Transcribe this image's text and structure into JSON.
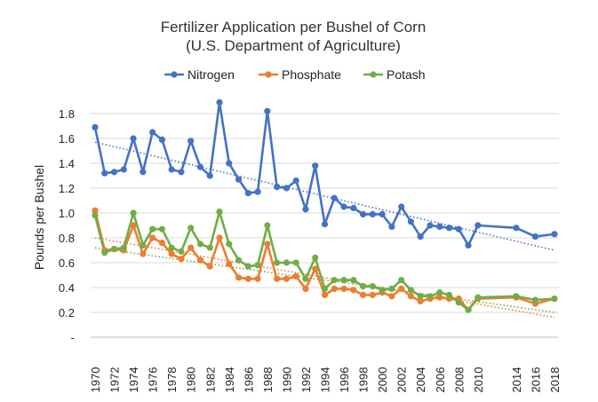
{
  "chart_data": {
    "type": "line",
    "title": [
      "Fertilizer Application per Bushel of Corn",
      "(U.S. Department of Agriculture)"
    ],
    "xlabel": "",
    "ylabel": "Pounds per Bushel",
    "ylim": [
      0,
      1.8
    ],
    "y_ticks": [
      0,
      0.2,
      0.4,
      0.6,
      0.8,
      1.0,
      1.2,
      1.4,
      1.6,
      1.8
    ],
    "y_tick_labels": [
      "-",
      "0.2",
      "0.4",
      "0.6",
      "0.8",
      "1.0",
      "1.2",
      "1.4",
      "1.6",
      "1.8"
    ],
    "xlim": [
      1970,
      2018
    ],
    "x_ticks": [
      1970,
      1972,
      1974,
      1976,
      1978,
      1980,
      1982,
      1984,
      1986,
      1988,
      1990,
      1992,
      1994,
      1996,
      1998,
      2000,
      2002,
      2004,
      2006,
      2008,
      2010,
      2014,
      2016,
      2018
    ],
    "x_tick_labels": [
      "1970",
      "1972",
      "1974",
      "1976",
      "1978",
      "1980",
      "1982",
      "1984",
      "1986",
      "1988",
      "1990",
      "1992",
      "1994",
      "1996",
      "1998",
      "2000",
      "2002",
      "2004",
      "2006",
      "2008",
      "2010",
      "2014",
      "2016",
      "2018"
    ],
    "grid": true,
    "legend_position": "top",
    "trendlines": true,
    "series": [
      {
        "name": "Nitrogen",
        "color": "#4472C4",
        "x": [
          1970,
          1971,
          1972,
          1973,
          1974,
          1975,
          1976,
          1977,
          1978,
          1979,
          1980,
          1981,
          1982,
          1983,
          1984,
          1985,
          1986,
          1987,
          1988,
          1989,
          1990,
          1991,
          1992,
          1993,
          1994,
          1995,
          1996,
          1997,
          1998,
          1999,
          2000,
          2001,
          2002,
          2003,
          2004,
          2005,
          2006,
          2007,
          2008,
          2009,
          2010,
          2014,
          2016,
          2018
        ],
        "values": [
          1.69,
          1.32,
          1.33,
          1.35,
          1.6,
          1.33,
          1.65,
          1.59,
          1.35,
          1.33,
          1.58,
          1.37,
          1.3,
          1.89,
          1.4,
          1.27,
          1.16,
          1.17,
          1.82,
          1.21,
          1.2,
          1.26,
          1.03,
          1.38,
          0.91,
          1.12,
          1.05,
          1.04,
          0.99,
          0.99,
          0.99,
          0.89,
          1.05,
          0.93,
          0.81,
          0.9,
          0.89,
          0.88,
          0.87,
          0.74,
          0.9,
          0.88,
          0.81,
          0.83
        ],
        "trend": [
          1.57,
          0.7
        ]
      },
      {
        "name": "Phosphate",
        "color": "#ED7D31",
        "x": [
          1970,
          1971,
          1972,
          1973,
          1974,
          1975,
          1976,
          1977,
          1978,
          1979,
          1980,
          1981,
          1982,
          1983,
          1984,
          1985,
          1986,
          1987,
          1988,
          1989,
          1990,
          1991,
          1992,
          1993,
          1994,
          1995,
          1996,
          1997,
          1998,
          1999,
          2000,
          2001,
          2002,
          2003,
          2004,
          2005,
          2006,
          2007,
          2008,
          2009,
          2010,
          2014,
          2016,
          2018
        ],
        "values": [
          1.02,
          0.7,
          0.71,
          0.7,
          0.9,
          0.67,
          0.8,
          0.76,
          0.67,
          0.63,
          0.72,
          0.62,
          0.57,
          0.8,
          0.59,
          0.48,
          0.47,
          0.47,
          0.75,
          0.47,
          0.47,
          0.49,
          0.39,
          0.55,
          0.34,
          0.39,
          0.39,
          0.38,
          0.34,
          0.34,
          0.36,
          0.33,
          0.39,
          0.33,
          0.29,
          0.31,
          0.32,
          0.31,
          0.31,
          0.22,
          0.31,
          0.32,
          0.27,
          0.31
        ],
        "trend": [
          0.8,
          0.16
        ]
      },
      {
        "name": "Potash",
        "color": "#70AD47",
        "x": [
          1970,
          1971,
          1972,
          1973,
          1974,
          1975,
          1976,
          1977,
          1978,
          1979,
          1980,
          1981,
          1982,
          1983,
          1984,
          1985,
          1986,
          1987,
          1988,
          1989,
          1990,
          1991,
          1992,
          1993,
          1994,
          1995,
          1996,
          1997,
          1998,
          1999,
          2000,
          2001,
          2002,
          2003,
          2004,
          2005,
          2006,
          2007,
          2008,
          2009,
          2010,
          2014,
          2016,
          2018
        ],
        "values": [
          0.98,
          0.68,
          0.71,
          0.72,
          1.0,
          0.74,
          0.87,
          0.87,
          0.72,
          0.69,
          0.88,
          0.75,
          0.72,
          1.01,
          0.75,
          0.62,
          0.57,
          0.58,
          0.9,
          0.6,
          0.6,
          0.6,
          0.47,
          0.64,
          0.39,
          0.46,
          0.46,
          0.46,
          0.41,
          0.41,
          0.38,
          0.39,
          0.46,
          0.38,
          0.33,
          0.33,
          0.36,
          0.34,
          0.28,
          0.22,
          0.32,
          0.33,
          0.3,
          0.31
        ],
        "trend": [
          0.72,
          0.2
        ]
      }
    ]
  }
}
